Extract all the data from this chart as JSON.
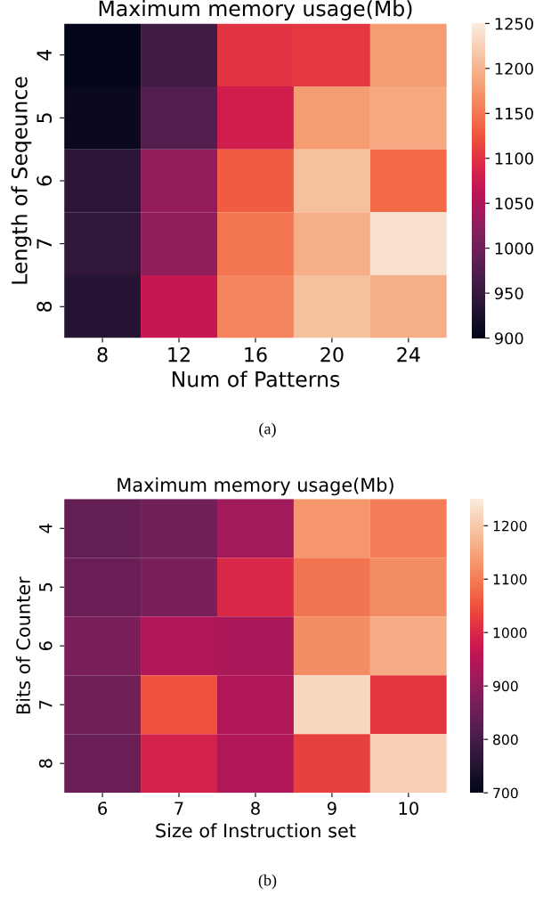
{
  "chart_data": [
    {
      "type": "heatmap",
      "title": "Maximum memory usage(Mb)",
      "xlabel": "Num of Patterns",
      "ylabel": "Length of Seqeunce",
      "categories": [
        "8",
        "12",
        "16",
        "20",
        "24"
      ],
      "y_categories": [
        "4",
        "5",
        "6",
        "7",
        "8"
      ],
      "cells": [
        [
          900,
          960,
          1100,
          1105,
          1180
        ],
        [
          910,
          975,
          1080,
          1180,
          1190
        ],
        [
          940,
          1030,
          1130,
          1210,
          1140
        ],
        [
          945,
          1025,
          1150,
          1195,
          1240
        ],
        [
          935,
          1070,
          1160,
          1210,
          1195
        ]
      ],
      "clim": [
        900,
        1250
      ],
      "cticks": [
        900,
        950,
        1000,
        1050,
        1100,
        1150,
        1200,
        1250
      ],
      "annotations": [
        "(a)"
      ]
    },
    {
      "type": "heatmap",
      "title": "Maximum memory usage(Mb)",
      "xlabel": "Size of Instruction set",
      "ylabel": "Bits of Counter",
      "categories": [
        "6",
        "7",
        "8",
        "9",
        "10"
      ],
      "y_categories": [
        "4",
        "5",
        "6",
        "7",
        "8"
      ],
      "cells": [
        [
          840,
          860,
          920,
          1130,
          1100
        ],
        [
          850,
          870,
          1000,
          1090,
          1120
        ],
        [
          870,
          940,
          930,
          1120,
          1160
        ],
        [
          860,
          1050,
          940,
          1220,
          1020
        ],
        [
          850,
          990,
          940,
          1030,
          1210
        ]
      ],
      "clim": [
        700,
        1250
      ],
      "cticks": [
        700,
        800,
        900,
        1000,
        1100,
        1200
      ],
      "annotations": [
        "(b)"
      ]
    }
  ]
}
